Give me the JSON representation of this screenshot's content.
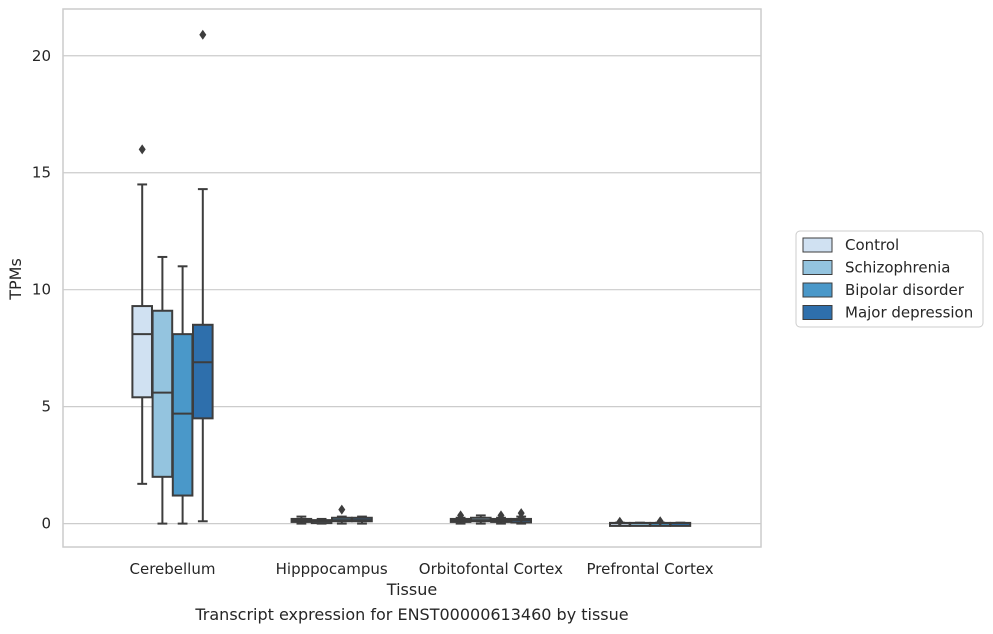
{
  "caption": "Transcript expression for ENST00000613460 by tissue",
  "chart_data": {
    "type": "box",
    "title": "",
    "xlabel": "Tissue",
    "ylabel": "TPMs",
    "ylim": [
      -1,
      22
    ],
    "yticks": [
      0,
      5,
      10,
      15,
      20
    ],
    "grid": "horizontal",
    "legend_position": "right",
    "categories": [
      "Cerebellum",
      "Hipppocampus",
      "Orbitofontal Cortex",
      "Prefrontal Cortex"
    ],
    "series": [
      {
        "name": "Control",
        "color": "#d0e1f2",
        "boxes": [
          {
            "whisker_low": 1.7,
            "q1": 5.4,
            "median": 8.1,
            "q3": 9.3,
            "whisker_high": 14.5,
            "outliers": [
              16.0
            ]
          },
          {
            "whisker_low": 0.0,
            "q1": 0.1,
            "median": 0.15,
            "q3": 0.2,
            "whisker_high": 0.3,
            "outliers": []
          },
          {
            "whisker_low": 0.0,
            "q1": 0.1,
            "median": 0.15,
            "q3": 0.2,
            "whisker_high": 0.25,
            "outliers": [
              0.35
            ]
          },
          {
            "whisker_low": 0.0,
            "q1": 0.01,
            "median": 0.02,
            "q3": 0.03,
            "whisker_high": 0.04,
            "outliers": [
              0.08
            ]
          }
        ]
      },
      {
        "name": "Schizophrenia",
        "color": "#94c4df",
        "boxes": [
          {
            "whisker_low": 0.0,
            "q1": 2.0,
            "median": 5.6,
            "q3": 9.1,
            "whisker_high": 11.4,
            "outliers": []
          },
          {
            "whisker_low": 0.0,
            "q1": 0.05,
            "median": 0.1,
            "q3": 0.15,
            "whisker_high": 0.2,
            "outliers": []
          },
          {
            "whisker_low": 0.0,
            "q1": 0.1,
            "median": 0.15,
            "q3": 0.25,
            "whisker_high": 0.35,
            "outliers": []
          },
          {
            "whisker_low": 0.0,
            "q1": 0.01,
            "median": 0.02,
            "q3": 0.03,
            "whisker_high": 0.04,
            "outliers": []
          }
        ]
      },
      {
        "name": "Bipolar disorder",
        "color": "#4a98c9",
        "boxes": [
          {
            "whisker_low": 0.0,
            "q1": 1.2,
            "median": 4.7,
            "q3": 8.1,
            "whisker_high": 11.0,
            "outliers": []
          },
          {
            "whisker_low": 0.0,
            "q1": 0.1,
            "median": 0.15,
            "q3": 0.25,
            "whisker_high": 0.3,
            "outliers": [
              0.6
            ]
          },
          {
            "whisker_low": 0.0,
            "q1": 0.1,
            "median": 0.15,
            "q3": 0.2,
            "whisker_high": 0.25,
            "outliers": [
              0.35
            ]
          },
          {
            "whisker_low": 0.0,
            "q1": 0.01,
            "median": 0.02,
            "q3": 0.03,
            "whisker_high": 0.04,
            "outliers": [
              0.1
            ]
          }
        ]
      },
      {
        "name": "Major depression",
        "color": "#2e6fac",
        "boxes": [
          {
            "whisker_low": 0.1,
            "q1": 4.5,
            "median": 6.9,
            "q3": 8.5,
            "whisker_high": 14.3,
            "outliers": [
              20.9
            ]
          },
          {
            "whisker_low": 0.0,
            "q1": 0.1,
            "median": 0.15,
            "q3": 0.25,
            "whisker_high": 0.3,
            "outliers": []
          },
          {
            "whisker_low": 0.0,
            "q1": 0.05,
            "median": 0.15,
            "q3": 0.2,
            "whisker_high": 0.3,
            "outliers": [
              0.45,
              0.25
            ]
          },
          {
            "whisker_low": 0.0,
            "q1": 0.01,
            "median": 0.02,
            "q3": 0.03,
            "whisker_high": 0.04,
            "outliers": []
          }
        ]
      }
    ]
  }
}
